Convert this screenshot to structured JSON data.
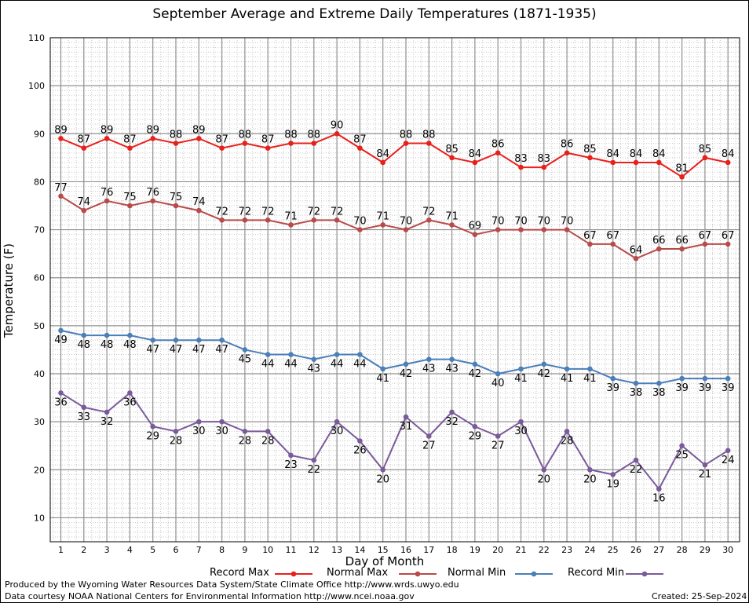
{
  "chart_data": {
    "type": "line",
    "title": "September Average and Extreme Daily Temperatures (1871-1935)",
    "xlabel": "Day of Month",
    "ylabel": "Temperature (F)",
    "x": [
      1,
      2,
      3,
      4,
      5,
      6,
      7,
      8,
      9,
      10,
      11,
      12,
      13,
      14,
      15,
      16,
      17,
      18,
      19,
      20,
      21,
      22,
      23,
      24,
      25,
      26,
      27,
      28,
      29,
      30
    ],
    "ylim": [
      5,
      110
    ],
    "yticks": [
      10,
      20,
      30,
      40,
      50,
      60,
      70,
      80,
      90,
      100,
      110
    ],
    "grid": true,
    "legend_position": "bottom",
    "series": [
      {
        "name": "Record Max",
        "color": "#e8201c",
        "label_pos": "above",
        "values": [
          89,
          87,
          89,
          87,
          89,
          88,
          89,
          87,
          88,
          87,
          88,
          88,
          90,
          87,
          84,
          88,
          88,
          85,
          84,
          86,
          83,
          83,
          86,
          85,
          84,
          84,
          84,
          81,
          85,
          84
        ]
      },
      {
        "name": "Normal Max",
        "color": "#b94a4a",
        "label_pos": "above",
        "values": [
          77,
          74,
          76,
          75,
          76,
          75,
          74,
          72,
          72,
          72,
          71,
          72,
          72,
          70,
          71,
          70,
          72,
          71,
          69,
          70,
          70,
          70,
          70,
          67,
          67,
          64,
          66,
          66,
          67,
          67
        ]
      },
      {
        "name": "Normal Min",
        "color": "#4a7fb8",
        "label_pos": "below",
        "values": [
          49,
          48,
          48,
          48,
          47,
          47,
          47,
          47,
          45,
          44,
          44,
          43,
          44,
          44,
          41,
          42,
          43,
          43,
          42,
          40,
          41,
          42,
          41,
          41,
          39,
          38,
          38,
          39,
          39,
          39
        ]
      },
      {
        "name": "Record Min",
        "color": "#7a5a9a",
        "label_pos": "below",
        "values": [
          36,
          33,
          32,
          36,
          29,
          28,
          30,
          30,
          28,
          28,
          23,
          22,
          30,
          26,
          20,
          31,
          27,
          32,
          29,
          27,
          30,
          20,
          28,
          20,
          19,
          22,
          16,
          25,
          21,
          24
        ]
      }
    ]
  },
  "footer": {
    "produced_by": "Produced by the Wyoming Water Resources Data System/State Climate Office http://www.wrds.uwyo.edu",
    "data_courtesy": "Data courtesy NOAA National Centers for Environmental Information http://www.ncei.noaa.gov",
    "created": "Created:  25-Sep-2024"
  }
}
